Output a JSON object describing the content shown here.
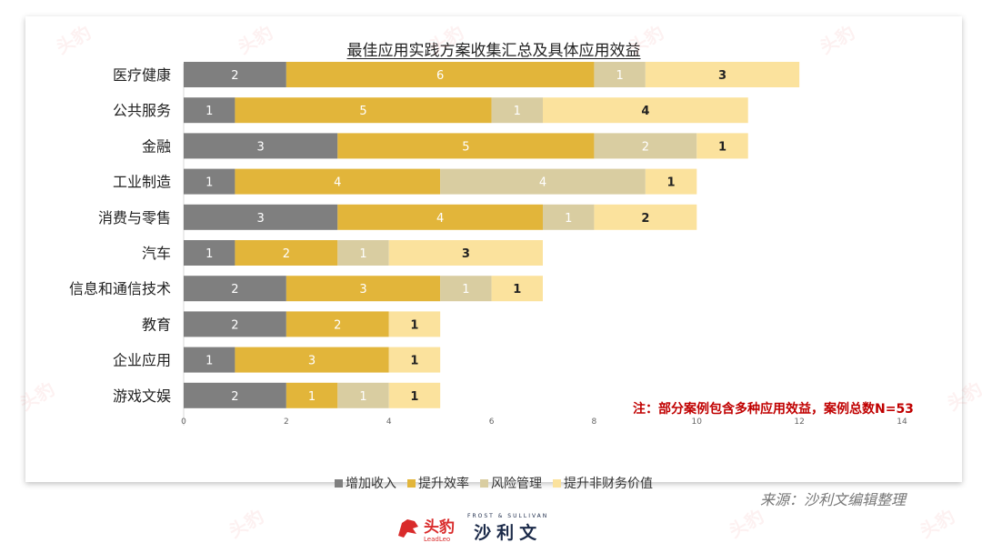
{
  "title": "最佳应用实践方案收集汇总及具体应用效益",
  "note": "注：部分案例包含多种应用效益，案例总数N=53",
  "source": "来源：沙利文编辑整理",
  "logos": {
    "leadleo_cn": "头豹",
    "leadleo_en": "LeadLeo",
    "frost_en": "FROST & SULLIVAN",
    "frost_cn": "沙利文"
  },
  "watermark_text": "头豹",
  "colors": {
    "series": [
      "#7f7f7f",
      "#e2b53a",
      "#d9cda1",
      "#fbe29d"
    ],
    "note": "#c00000"
  },
  "chart_data": {
    "type": "bar",
    "orientation": "horizontal",
    "stacked": true,
    "title": "最佳应用实践方案收集汇总及具体应用效益",
    "categories": [
      "医疗健康",
      "公共服务",
      "金融",
      "工业制造",
      "消费与零售",
      "汽车",
      "信息和通信技术",
      "教育",
      "企业应用",
      "游戏文娱"
    ],
    "series": [
      {
        "name": "增加收入",
        "values": [
          2,
          1,
          3,
          1,
          3,
          1,
          2,
          2,
          1,
          2
        ]
      },
      {
        "name": "提升效率",
        "values": [
          6,
          5,
          5,
          4,
          4,
          2,
          3,
          2,
          3,
          1
        ]
      },
      {
        "name": "风险管理",
        "values": [
          1,
          1,
          2,
          4,
          1,
          1,
          1,
          0,
          0,
          1
        ]
      },
      {
        "name": "提升非财务价值",
        "values": [
          3,
          4,
          1,
          1,
          2,
          3,
          1,
          1,
          1,
          1
        ]
      }
    ],
    "xlim": [
      0,
      14
    ],
    "xticks": [
      0,
      2,
      4,
      6,
      8,
      10,
      12,
      14
    ],
    "grid": false,
    "legend_position": "bottom"
  }
}
